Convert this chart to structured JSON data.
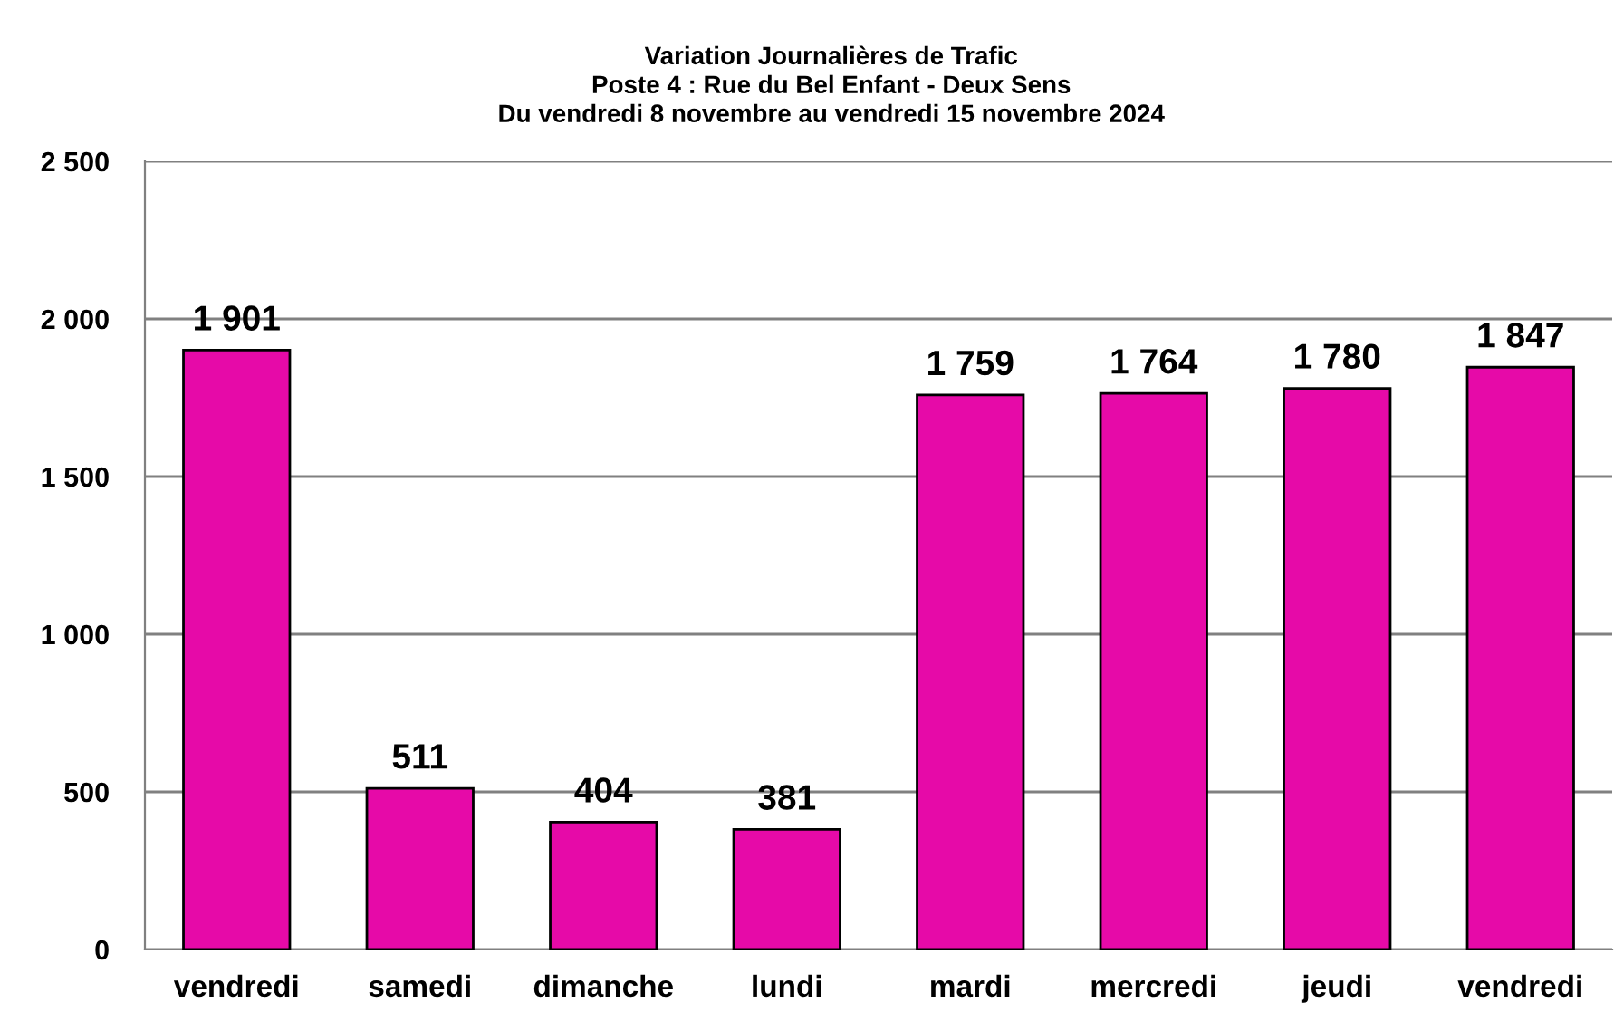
{
  "chart_data": {
    "type": "bar",
    "title": "Variation Journalières de Trafic\nPoste 4 : Rue du Bel Enfant - Deux Sens\nDu vendredi 8 novembre au vendredi 15 novembre 2024",
    "categories": [
      "vendredi",
      "samedi",
      "dimanche",
      "lundi",
      "mardi",
      "mercredi",
      "jeudi",
      "vendredi"
    ],
    "values": [
      1901,
      511,
      404,
      381,
      1759,
      1764,
      1780,
      1847
    ],
    "value_labels": [
      "1 901",
      "511",
      "404",
      "381",
      "1 759",
      "1 764",
      "1 780",
      "1 847"
    ],
    "color": "#e60aa8",
    "ylim": [
      0,
      2500
    ],
    "yticks": [
      {
        "value": 0,
        "label": "0"
      },
      {
        "value": 500,
        "label": "500"
      },
      {
        "value": 1000,
        "label": "1 000"
      },
      {
        "value": 1500,
        "label": "1 500"
      },
      {
        "value": 2000,
        "label": "2 000"
      },
      {
        "value": 2500,
        "label": "2 500"
      }
    ],
    "grid": "y"
  }
}
